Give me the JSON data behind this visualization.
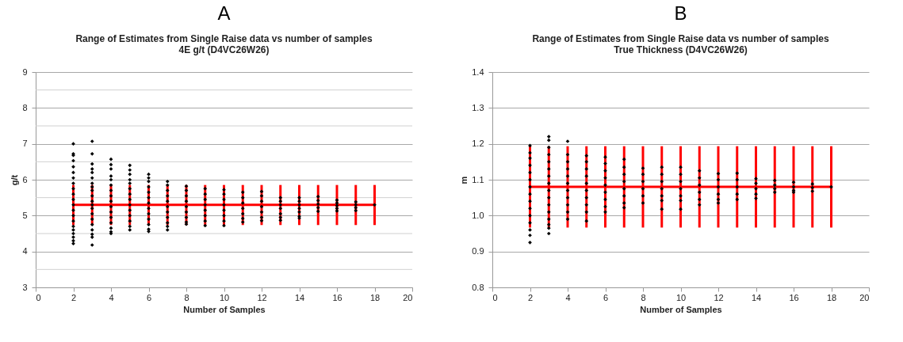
{
  "chart_data": [
    {
      "type": "scatter",
      "title": "A",
      "subtitle": "Range of Estimates from Single Raise data  vs number of samples\n4E g/t (D4VC26W26)",
      "xlabel": "Number of Samples",
      "ylabel": "g/t",
      "xlim": [
        0,
        20
      ],
      "xticks": [
        0,
        2,
        4,
        6,
        8,
        10,
        12,
        14,
        16,
        18,
        20
      ],
      "ylim": [
        3,
        9
      ],
      "yticks": [
        3,
        {
          "value": 3.5,
          "label": null
        },
        4,
        {
          "value": 4.5,
          "label": null
        },
        5,
        {
          "value": 5.5,
          "label": null
        },
        6,
        {
          "value": 6.5,
          "label": null
        },
        7,
        {
          "value": 7.5,
          "label": null
        },
        8,
        {
          "value": 8.5,
          "label": null
        },
        9
      ],
      "grid": "y",
      "marker": "diamond",
      "series": [
        {
          "color": "#000000",
          "x": [
            2,
            2,
            2,
            2,
            2,
            2,
            2,
            2,
            2,
            2,
            2,
            2,
            2,
            2,
            2,
            2,
            2,
            2,
            2,
            2,
            2
          ],
          "values": [
            7.0,
            6.72,
            6.68,
            6.53,
            6.36,
            6.2,
            6.05,
            5.9,
            5.75,
            5.6,
            5.45,
            5.3,
            5.15,
            5.0,
            4.85,
            4.7,
            4.6,
            4.5,
            4.4,
            4.3,
            4.22
          ]
        },
        {
          "color": "#000000",
          "x": [
            3,
            3,
            3,
            3,
            3,
            3,
            3,
            3,
            3,
            3,
            3,
            3,
            3,
            3,
            3,
            3,
            3,
            3,
            3,
            3
          ],
          "values": [
            7.07,
            6.72,
            6.44,
            6.3,
            6.2,
            6.05,
            5.9,
            5.8,
            5.7,
            5.55,
            5.4,
            5.3,
            5.2,
            5.05,
            4.9,
            4.75,
            4.6,
            4.48,
            4.4,
            4.18
          ]
        },
        {
          "color": "#000000",
          "x": [
            4,
            4,
            4,
            4,
            4,
            4,
            4,
            4,
            4,
            4,
            4,
            4,
            4,
            4,
            4,
            4
          ],
          "values": [
            6.57,
            6.42,
            6.3,
            6.1,
            6.0,
            5.85,
            5.7,
            5.55,
            5.4,
            5.25,
            5.1,
            4.95,
            4.8,
            4.65,
            4.55,
            4.5
          ]
        },
        {
          "color": "#000000",
          "x": [
            5,
            5,
            5,
            5,
            5,
            5,
            5,
            5,
            5,
            5,
            5,
            5,
            5,
            5
          ],
          "values": [
            6.4,
            6.27,
            6.15,
            6.0,
            5.9,
            5.75,
            5.6,
            5.45,
            5.3,
            5.15,
            5.0,
            4.85,
            4.7,
            4.6
          ]
        },
        {
          "color": "#000000",
          "x": [
            6,
            6,
            6,
            6,
            6,
            6,
            6,
            6,
            6,
            6,
            6,
            6,
            6
          ],
          "values": [
            6.15,
            6.05,
            5.95,
            5.8,
            5.65,
            5.5,
            5.35,
            5.2,
            5.05,
            4.9,
            4.75,
            4.62,
            4.56
          ]
        },
        {
          "color": "#000000",
          "x": [
            7,
            7,
            7,
            7,
            7,
            7,
            7,
            7,
            7,
            7,
            7
          ],
          "values": [
            5.95,
            5.85,
            5.7,
            5.55,
            5.4,
            5.25,
            5.1,
            4.95,
            4.8,
            4.7,
            4.6
          ]
        },
        {
          "color": "#000000",
          "x": [
            8,
            8,
            8,
            8,
            8,
            8,
            8,
            8,
            8
          ],
          "values": [
            5.82,
            5.7,
            5.55,
            5.4,
            5.25,
            5.1,
            4.95,
            4.82,
            4.76
          ]
        },
        {
          "color": "#000000",
          "x": [
            9,
            9,
            9,
            9,
            9,
            9,
            9,
            9
          ],
          "values": [
            5.75,
            5.6,
            5.45,
            5.3,
            5.15,
            5.0,
            4.85,
            4.72
          ]
        },
        {
          "color": "#000000",
          "x": [
            10,
            10,
            10,
            10,
            10,
            10,
            10,
            10
          ],
          "values": [
            5.72,
            5.6,
            5.45,
            5.3,
            5.15,
            5.0,
            4.85,
            4.72
          ]
        },
        {
          "color": "#000000",
          "x": [
            11,
            11,
            11,
            11,
            11,
            11,
            11
          ],
          "values": [
            5.65,
            5.5,
            5.35,
            5.2,
            5.05,
            4.92,
            4.82
          ]
        },
        {
          "color": "#000000",
          "x": [
            12,
            12,
            12,
            12,
            12,
            12,
            12
          ],
          "values": [
            5.67,
            5.55,
            5.4,
            5.25,
            5.1,
            4.95,
            4.86
          ]
        },
        {
          "color": "#000000",
          "x": [
            13,
            13,
            13,
            13,
            13,
            13,
            13
          ],
          "values": [
            5.5,
            5.4,
            5.3,
            5.2,
            5.05,
            4.95,
            4.87
          ]
        },
        {
          "color": "#000000",
          "x": [
            14,
            14,
            14,
            14,
            14,
            14,
            14
          ],
          "values": [
            5.5,
            5.4,
            5.3,
            5.2,
            5.1,
            4.98,
            4.93
          ]
        },
        {
          "color": "#000000",
          "x": [
            15,
            15,
            15,
            15,
            15
          ],
          "values": [
            5.53,
            5.42,
            5.32,
            5.22,
            5.12
          ]
        },
        {
          "color": "#000000",
          "x": [
            16,
            16,
            16,
            16,
            16
          ],
          "values": [
            5.43,
            5.35,
            5.28,
            5.2,
            5.13
          ]
        },
        {
          "color": "#000000",
          "x": [
            17,
            17,
            17,
            17
          ],
          "values": [
            5.38,
            5.3,
            5.22,
            5.14
          ]
        },
        {
          "color": "#000000",
          "x": [
            18
          ],
          "values": [
            5.3
          ]
        },
        {
          "type": "line",
          "marker": "none",
          "color": "#ff0000",
          "x": [
            2,
            3,
            4,
            5,
            6,
            7,
            8,
            9,
            10,
            11,
            12,
            13,
            14,
            15,
            16,
            17,
            18
          ],
          "values": [
            5.3,
            5.3,
            5.3,
            5.3,
            5.3,
            5.3,
            5.3,
            5.3,
            5.3,
            5.3,
            5.3,
            5.3,
            5.3,
            5.3,
            5.3,
            5.3,
            5.3
          ],
          "errors": [
            [
              4.77,
              5.82
            ],
            [
              4.77,
              5.82
            ],
            [
              4.77,
              5.82
            ],
            [
              4.77,
              5.82
            ],
            [
              4.77,
              5.82
            ],
            [
              4.77,
              5.82
            ],
            [
              4.77,
              5.82
            ],
            [
              4.77,
              5.82
            ],
            [
              4.77,
              5.82
            ],
            [
              4.77,
              5.82
            ],
            [
              4.77,
              5.82
            ],
            [
              4.77,
              5.82
            ],
            [
              4.77,
              5.82
            ],
            [
              4.77,
              5.82
            ],
            [
              4.77,
              5.82
            ],
            [
              4.77,
              5.82
            ],
            [
              4.77,
              5.82
            ]
          ]
        }
      ]
    },
    {
      "type": "scatter",
      "title": "B",
      "subtitle": "Range of Estimates from Single Raise data vs number of samples\nTrue Thickness (D4VC26W26)",
      "xlabel": "Number of Samples",
      "ylabel": "m",
      "xlim": [
        0,
        20
      ],
      "xticks": [
        0,
        2,
        4,
        6,
        8,
        10,
        12,
        14,
        16,
        18,
        20
      ],
      "ylim": [
        0.8,
        1.4
      ],
      "yticks": [
        {
          "value": 0.8,
          "label": "0.8"
        },
        {
          "value": 0.9,
          "label": "0.9"
        },
        {
          "value": 1.0,
          "label": "1.0"
        },
        {
          "value": 1.1,
          "label": "1.1"
        },
        {
          "value": 1.2,
          "label": "1.2"
        },
        {
          "value": 1.3,
          "label": "1.3"
        },
        {
          "value": 1.4,
          "label": "1.4"
        }
      ],
      "grid": "y",
      "marker": "diamond",
      "series": [
        {
          "color": "#000000",
          "x": [
            2,
            2,
            2,
            2,
            2,
            2,
            2,
            2,
            2,
            2,
            2,
            2,
            2,
            2,
            2
          ],
          "values": [
            1.195,
            1.175,
            1.16,
            1.14,
            1.12,
            1.1,
            1.08,
            1.06,
            1.04,
            1.02,
            1.0,
            0.98,
            0.96,
            0.945,
            0.925
          ]
        },
        {
          "color": "#000000",
          "x": [
            3,
            3,
            3,
            3,
            3,
            3,
            3,
            3,
            3,
            3,
            3,
            3,
            3,
            3,
            3,
            3
          ],
          "values": [
            1.22,
            1.21,
            1.19,
            1.17,
            1.15,
            1.13,
            1.11,
            1.09,
            1.07,
            1.05,
            1.03,
            1.01,
            0.99,
            0.975,
            0.965,
            0.95
          ]
        },
        {
          "color": "#000000",
          "x": [
            4,
            4,
            4,
            4,
            4,
            4,
            4,
            4,
            4,
            4,
            4
          ],
          "values": [
            1.207,
            1.17,
            1.15,
            1.13,
            1.11,
            1.09,
            1.07,
            1.05,
            1.03,
            1.01,
            0.99
          ]
        },
        {
          "color": "#000000",
          "x": [
            5,
            5,
            5,
            5,
            5,
            5,
            5,
            5,
            5,
            5
          ],
          "values": [
            1.167,
            1.15,
            1.13,
            1.11,
            1.09,
            1.07,
            1.05,
            1.03,
            1.01,
            0.985
          ]
        },
        {
          "color": "#000000",
          "x": [
            6,
            6,
            6,
            6,
            6,
            6,
            6,
            6,
            6
          ],
          "values": [
            1.163,
            1.145,
            1.125,
            1.105,
            1.085,
            1.065,
            1.045,
            1.025,
            1.01
          ]
        },
        {
          "color": "#000000",
          "x": [
            7,
            7,
            7,
            7,
            7,
            7,
            7,
            7
          ],
          "values": [
            1.157,
            1.135,
            1.115,
            1.095,
            1.075,
            1.055,
            1.035,
            1.022
          ]
        },
        {
          "color": "#000000",
          "x": [
            8,
            8,
            8,
            8,
            8,
            8
          ],
          "values": [
            1.132,
            1.115,
            1.095,
            1.075,
            1.055,
            1.035
          ]
        },
        {
          "color": "#000000",
          "x": [
            9,
            9,
            9,
            9,
            9,
            9,
            9
          ],
          "values": [
            1.135,
            1.115,
            1.095,
            1.075,
            1.055,
            1.042,
            1.018
          ]
        },
        {
          "color": "#000000",
          "x": [
            10,
            10,
            10,
            10,
            10,
            10,
            10
          ],
          "values": [
            1.135,
            1.115,
            1.095,
            1.075,
            1.055,
            1.042,
            1.018
          ]
        },
        {
          "color": "#000000",
          "x": [
            11,
            11,
            11,
            11,
            11,
            11
          ],
          "values": [
            1.125,
            1.105,
            1.085,
            1.065,
            1.045,
            1.03
          ]
        },
        {
          "color": "#000000",
          "x": [
            12,
            12,
            12,
            12,
            12,
            12
          ],
          "values": [
            1.117,
            1.1,
            1.08,
            1.06,
            1.045,
            1.035
          ]
        },
        {
          "color": "#000000",
          "x": [
            13,
            13,
            13,
            13,
            13
          ],
          "values": [
            1.118,
            1.1,
            1.08,
            1.06,
            1.045
          ]
        },
        {
          "color": "#000000",
          "x": [
            14,
            14,
            14,
            14,
            14
          ],
          "values": [
            1.103,
            1.09,
            1.075,
            1.06,
            1.048
          ]
        },
        {
          "color": "#000000",
          "x": [
            15,
            15,
            15,
            15
          ],
          "values": [
            1.098,
            1.085,
            1.075,
            1.065
          ]
        },
        {
          "color": "#000000",
          "x": [
            16,
            16,
            16,
            16
          ],
          "values": [
            1.093,
            1.08,
            1.07,
            1.065
          ]
        },
        {
          "color": "#000000",
          "x": [
            17,
            17,
            17
          ],
          "values": [
            1.088,
            1.078,
            1.068
          ]
        },
        {
          "color": "#000000",
          "x": [
            18
          ],
          "values": [
            1.08
          ]
        },
        {
          "type": "line",
          "marker": "none",
          "color": "#ff0000",
          "x": [
            2,
            3,
            4,
            5,
            6,
            7,
            8,
            9,
            10,
            11,
            12,
            13,
            14,
            15,
            16,
            17,
            18
          ],
          "values": [
            1.08,
            1.08,
            1.08,
            1.08,
            1.08,
            1.08,
            1.08,
            1.08,
            1.08,
            1.08,
            1.08,
            1.08,
            1.08,
            1.08,
            1.08,
            1.08,
            1.08
          ],
          "errors": [
            [
              0.97,
              1.19
            ],
            [
              0.97,
              1.19
            ],
            [
              0.97,
              1.19
            ],
            [
              0.97,
              1.19
            ],
            [
              0.97,
              1.19
            ],
            [
              0.97,
              1.19
            ],
            [
              0.97,
              1.19
            ],
            [
              0.97,
              1.19
            ],
            [
              0.97,
              1.19
            ],
            [
              0.97,
              1.19
            ],
            [
              0.97,
              1.19
            ],
            [
              0.97,
              1.19
            ],
            [
              0.97,
              1.19
            ],
            [
              0.97,
              1.19
            ],
            [
              0.97,
              1.19
            ],
            [
              0.97,
              1.19
            ],
            [
              0.97,
              1.19
            ]
          ]
        }
      ]
    }
  ]
}
